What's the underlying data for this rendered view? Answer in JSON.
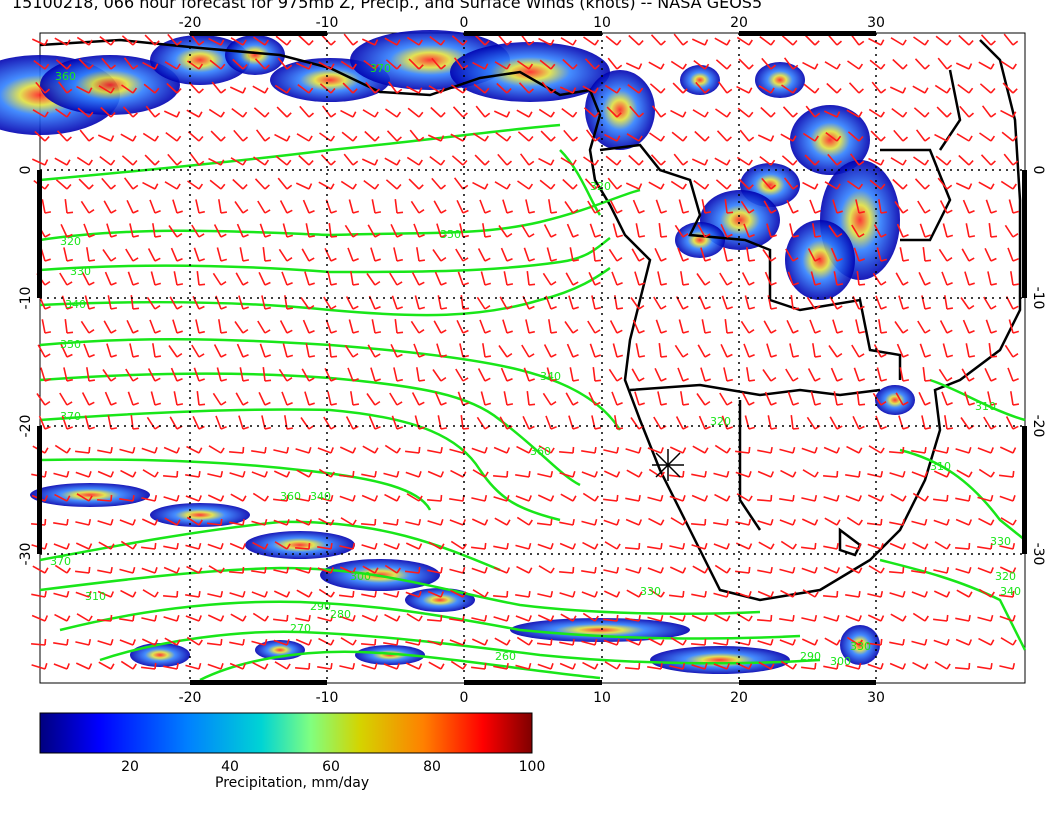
{
  "title": "15100218, 066 hour forecast for 975mb Z, Precip., and Surface Winds (knots) -- NASA GEOS5",
  "map": {
    "lon_labels": [
      "-20",
      "-10",
      "0",
      "10",
      "20",
      "30"
    ],
    "lat_labels": [
      "0",
      "-10",
      "-20",
      "-30"
    ],
    "lon_range": [
      -30,
      41
    ],
    "lat_range": [
      -40,
      10
    ],
    "contour_labels": [
      "360",
      "370",
      "320",
      "330",
      "340",
      "350",
      "370",
      "350",
      "340",
      "340",
      "360",
      "320",
      "360",
      "370",
      "310",
      "300",
      "290",
      "280",
      "270",
      "260",
      "330",
      "320",
      "310",
      "330",
      "320",
      "340",
      "310",
      "290",
      "300",
      "330"
    ],
    "marker": "sun-cross-icon",
    "colors": {
      "contour": "#19e619",
      "wind_barb": "#ff1a1a",
      "coast": "#000000",
      "precip_low": "#0000a0",
      "precip_high": "#800000"
    }
  },
  "colorbar": {
    "title": "Precipitation, mm/day",
    "ticks": [
      "20",
      "40",
      "60",
      "80",
      "100"
    ],
    "range": [
      0,
      100
    ],
    "colors": [
      "#00007f",
      "#0000ff",
      "#0080ff",
      "#00d4d4",
      "#80ff80",
      "#d4d400",
      "#ff8000",
      "#ff0000",
      "#7f0000"
    ]
  }
}
